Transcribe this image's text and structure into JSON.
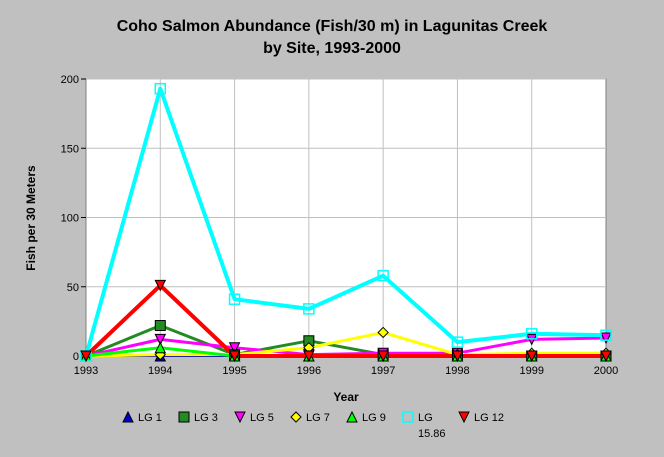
{
  "chart_data": {
    "type": "line",
    "title_lines": [
      "Coho Salmon Abundance (Fish/30 m) in Lagunitas Creek",
      "by Site, 1993-2000"
    ],
    "xlabel": "Year",
    "ylabel": "Fish per 30 Meters",
    "x": [
      1993,
      1994,
      1995,
      1996,
      1997,
      1998,
      1999,
      2000
    ],
    "ylim": [
      0,
      200
    ],
    "yticks": [
      0,
      50,
      100,
      150,
      200
    ],
    "grid": true,
    "legend_position": "bottom",
    "series": [
      {
        "name": "LG 1",
        "name_lines": [
          "LG 1"
        ],
        "color": "#0000cc",
        "marker": "triangle-up",
        "width": 2,
        "values": [
          0,
          0,
          0,
          0,
          0,
          0,
          0,
          0
        ]
      },
      {
        "name": "LG 3",
        "name_lines": [
          "LG 3"
        ],
        "color": "#228b22",
        "marker": "square-filled",
        "width": 3,
        "values": [
          0,
          22,
          1,
          11,
          1,
          1,
          0,
          0
        ]
      },
      {
        "name": "LG 5",
        "name_lines": [
          "LG 5"
        ],
        "color": "#ff00ff",
        "marker": "triangle-down",
        "width": 3,
        "values": [
          0,
          12,
          6,
          1,
          2,
          2,
          12,
          13
        ]
      },
      {
        "name": "LG 7",
        "name_lines": [
          "LG 7"
        ],
        "color": "#ffff00",
        "marker": "diamond",
        "width": 3,
        "values": [
          0,
          1,
          1,
          6,
          17,
          1,
          2,
          2
        ]
      },
      {
        "name": "LG 9",
        "name_lines": [
          "LG 9"
        ],
        "color": "#00ff00",
        "marker": "triangle-up",
        "width": 3,
        "values": [
          0,
          6,
          0,
          0,
          0,
          0,
          0,
          0
        ]
      },
      {
        "name": "LG 15.86",
        "name_lines": [
          "LG",
          "15.86"
        ],
        "color": "#00ffff",
        "marker": "square-open",
        "width": 4,
        "values": [
          0,
          193,
          41,
          34,
          58,
          10,
          16,
          15
        ]
      },
      {
        "name": "LG 12",
        "name_lines": [
          "LG 12"
        ],
        "color": "#ff0000",
        "marker": "triangle-down",
        "width": 4,
        "values": [
          0,
          51,
          0,
          0,
          0,
          0,
          0,
          0
        ]
      }
    ]
  }
}
